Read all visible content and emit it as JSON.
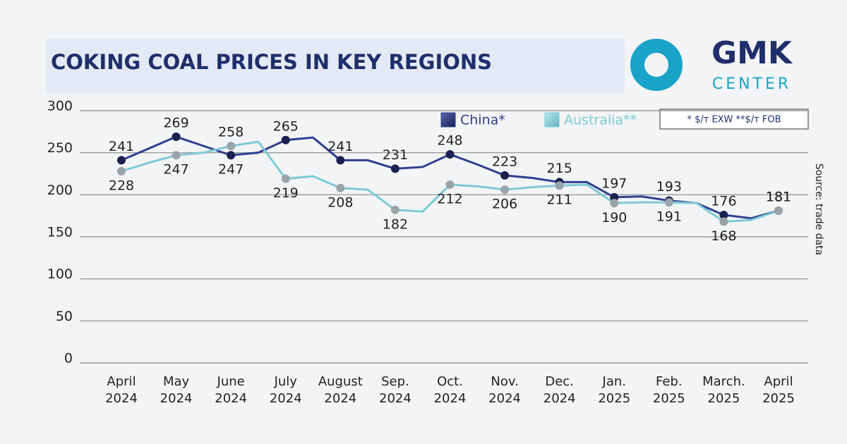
{
  "chart_data": {
    "type": "line",
    "title": "COKING COAL PRICES IN KEY REGIONS",
    "logo": {
      "name": "GMK",
      "sub": "CENTER"
    },
    "note": "* $/т EXW   **$/т FOB",
    "source": "Source: trade data",
    "categories": [
      "April 2024",
      null,
      "May 2024",
      null,
      "June 2024",
      null,
      "July 2024",
      null,
      "August 2024",
      null,
      "Sep. 2024",
      null,
      "Oct. 2024",
      null,
      "Nov. 2024",
      null,
      "Dec. 2024",
      null,
      "Jan. 2025",
      null,
      "Feb. 2025",
      null,
      "March. 2025",
      null,
      "April 2025"
    ],
    "series": [
      {
        "name": "China*",
        "color": "#2e3f8f",
        "marker_color": "#1a2150",
        "values": [
          241,
          255,
          269,
          258,
          247,
          250,
          265,
          268,
          241,
          241,
          231,
          233,
          248,
          236,
          223,
          220,
          215,
          215,
          197,
          198,
          193,
          190,
          176,
          172,
          181
        ],
        "value_labels": [
          "241",
          null,
          "269",
          null,
          "247",
          null,
          "265",
          null,
          "241",
          null,
          "231",
          null,
          "248",
          null,
          "223",
          null,
          "215",
          null,
          "197",
          null,
          "193",
          null,
          "176",
          null,
          "181"
        ]
      },
      {
        "name": "Australia**",
        "color": "#7ccad6",
        "marker_color": "#9aa3a8",
        "values": [
          228,
          238,
          247,
          250,
          258,
          263,
          219,
          222,
          208,
          206,
          182,
          180,
          212,
          210,
          206,
          209,
          211,
          212,
          190,
          191,
          191,
          190,
          168,
          170,
          181
        ],
        "value_labels": [
          "228",
          null,
          "247",
          null,
          "258",
          null,
          "219",
          null,
          "208",
          null,
          "182",
          null,
          "212",
          null,
          "206",
          null,
          "211",
          null,
          "190",
          null,
          "191",
          null,
          "168",
          null,
          "181"
        ]
      }
    ],
    "ylim": [
      0,
      300
    ],
    "yticks": [
      0,
      50,
      100,
      150,
      200,
      250,
      300
    ],
    "grid": true
  }
}
